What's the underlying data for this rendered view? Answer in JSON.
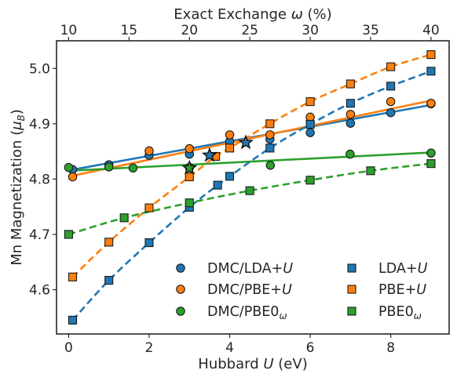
{
  "chart_data": {
    "type": "scatter",
    "xlabel_main": "Hubbard",
    "xlabel_var": "U",
    "xlabel_unit": "(eV)",
    "xlabel_top_main": "Exact Exchange",
    "xlabel_top_var": "ω",
    "xlabel_top_unit": "(%)",
    "ylabel_main": "Mn Magnetization (",
    "ylabel_var": "μ",
    "ylabel_sub": "B",
    "ylabel_close": ")",
    "xlim": [
      -0.3,
      9.45
    ],
    "ylim": [
      4.52,
      5.05
    ],
    "xlim_top": [
      9.0,
      41.5
    ],
    "xticks": [
      0,
      2,
      4,
      6,
      8
    ],
    "xtick_labels": [
      "0",
      "2",
      "4",
      "6",
      "8"
    ],
    "xticks_top": [
      10,
      15,
      20,
      25,
      30,
      35,
      40
    ],
    "xtick_top_labels": [
      "10",
      "15",
      "20",
      "25",
      "30",
      "35",
      "40"
    ],
    "yticks": [
      4.6,
      4.7,
      4.8,
      4.9,
      5.0
    ],
    "ytick_labels": [
      "4.6",
      "4.7",
      "4.8",
      "4.9",
      "5.0"
    ],
    "grid": false,
    "legend_placement": "bottom-right",
    "colors": {
      "blue": "#1f77b4",
      "orange": "#ff7f0e",
      "green": "#2ca02c"
    },
    "series": [
      {
        "name": "DMC/LDA+",
        "name_var": "U",
        "name_sub": "",
        "marker": "circle",
        "color": "#1f77b4",
        "axis": "bottom",
        "line": "solid",
        "x": [
          0.1,
          1.0,
          2.0,
          3.0,
          4.0,
          5.0,
          6.0,
          7.0,
          8.0,
          9.0
        ],
        "y": [
          4.817,
          4.826,
          4.843,
          4.845,
          4.868,
          4.872,
          4.884,
          4.901,
          4.92,
          4.936
        ],
        "fit": [
          [
            0.1,
            4.817
          ],
          [
            9.0,
            4.934
          ]
        ]
      },
      {
        "name": "DMC/PBE+",
        "name_var": "U",
        "name_sub": "",
        "marker": "circle",
        "color": "#ff7f0e",
        "axis": "bottom",
        "line": "solid",
        "x": [
          0.1,
          2.0,
          3.0,
          4.0,
          5.0,
          6.0,
          7.0,
          8.0,
          9.0
        ],
        "y": [
          4.804,
          4.851,
          4.855,
          4.88,
          4.88,
          4.912,
          4.917,
          4.94,
          4.937
        ],
        "fit": [
          [
            0.1,
            4.806
          ],
          [
            9.0,
            4.942
          ]
        ]
      },
      {
        "name": "DMC/PBE0",
        "name_var": "",
        "name_sub": "ω",
        "marker": "circle",
        "color": "#2ca02c",
        "axis": "top",
        "line": "solid",
        "x": [
          10,
          20,
          26.7,
          33.3,
          40
        ],
        "y": [
          4.821,
          4.821,
          4.825,
          4.845,
          4.847
        ],
        "extra_bottom_x": [
          1.0,
          1.6
        ],
        "extra_bottom_y": [
          4.822,
          4.82
        ],
        "fit": [
          [
            10,
            4.815
          ],
          [
            40,
            4.848
          ]
        ]
      },
      {
        "name": "LDA+",
        "name_var": "U",
        "name_sub": "",
        "marker": "square",
        "color": "#1f77b4",
        "axis": "bottom",
        "line": "dashed",
        "x": [
          0.1,
          1.0,
          2.0,
          3.0,
          3.7,
          4.0,
          5.0,
          6.0,
          7.0,
          8.0,
          9.0
        ],
        "y": [
          4.545,
          4.617,
          4.685,
          4.749,
          4.789,
          4.805,
          4.856,
          4.899,
          4.937,
          4.968,
          4.995
        ]
      },
      {
        "name": "PBE+",
        "name_var": "U",
        "name_sub": "",
        "marker": "square",
        "color": "#ff7f0e",
        "axis": "bottom",
        "line": "dashed",
        "x": [
          0.1,
          1.0,
          2.0,
          3.0,
          3.65,
          4.0,
          5.0,
          6.0,
          7.0,
          8.0,
          9.0
        ],
        "y": [
          4.623,
          4.686,
          4.748,
          4.804,
          4.841,
          4.856,
          4.9,
          4.94,
          4.972,
          5.003,
          5.025
        ]
      },
      {
        "name": "PBE0",
        "name_var": "",
        "name_sub": "ω",
        "marker": "square",
        "color": "#2ca02c",
        "axis": "top",
        "line": "dashed",
        "x": [
          10,
          14.6,
          20,
          25,
          30,
          35,
          40
        ],
        "y": [
          4.7,
          4.73,
          4.757,
          4.779,
          4.798,
          4.815,
          4.828
        ]
      }
    ],
    "stars": [
      {
        "axis": "bottom",
        "x": 3.5,
        "y": 4.843,
        "color": "#1f77b4"
      },
      {
        "axis": "bottom",
        "x": 4.4,
        "y": 4.866,
        "color": "#1f77b4"
      },
      {
        "axis": "top",
        "x": 20,
        "y": 4.82,
        "color": "#2ca02c"
      }
    ]
  }
}
